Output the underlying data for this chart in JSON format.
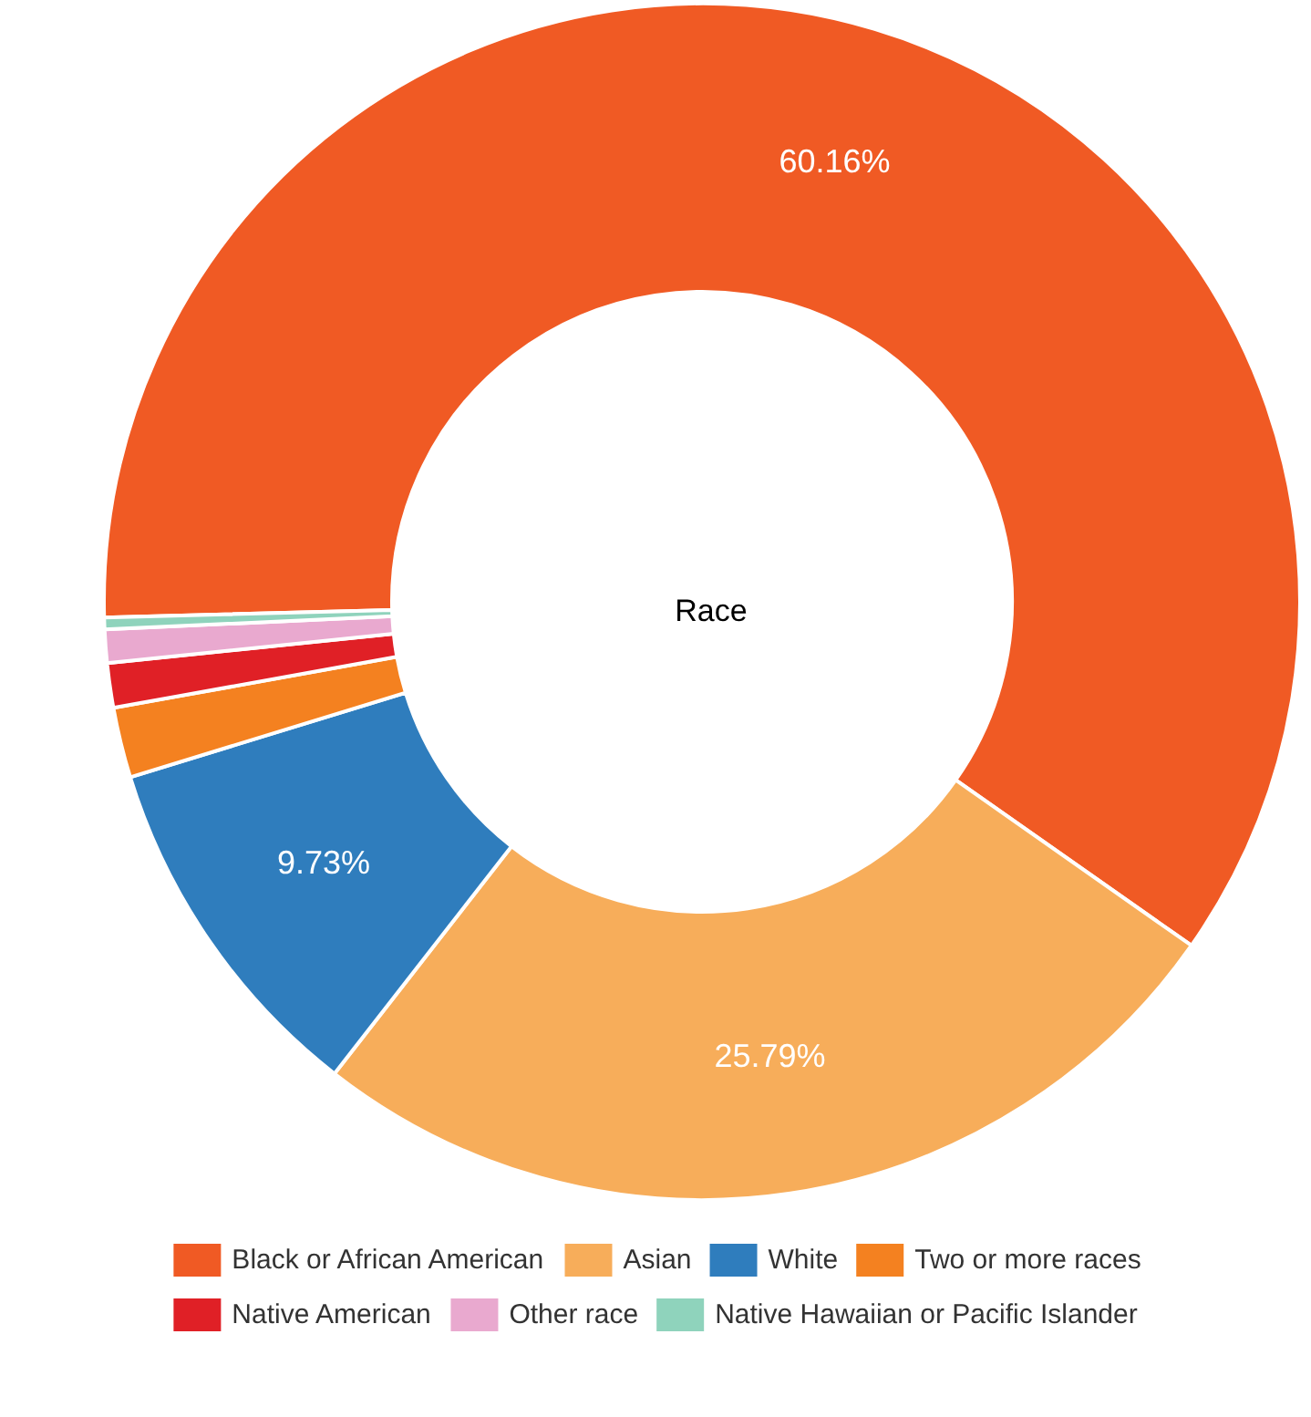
{
  "chart_data": {
    "type": "donut",
    "title": "Race",
    "categories": [
      "Black or African American",
      "Asian",
      "White",
      "Two or more races",
      "Native American",
      "Other race",
      "Native Hawaiian or Pacific Islander"
    ],
    "values": [
      60.16,
      25.79,
      9.73,
      1.9,
      1.2,
      0.9,
      0.32
    ],
    "colors": [
      "#f05a24",
      "#f7ad5a",
      "#2f7dbd",
      "#f48120",
      "#e02026",
      "#e9a9cf",
      "#8fd3bc"
    ],
    "value_labels": [
      "60.16%",
      "25.79%",
      "9.73%",
      null,
      null,
      null,
      null
    ],
    "legend": "bottom"
  }
}
